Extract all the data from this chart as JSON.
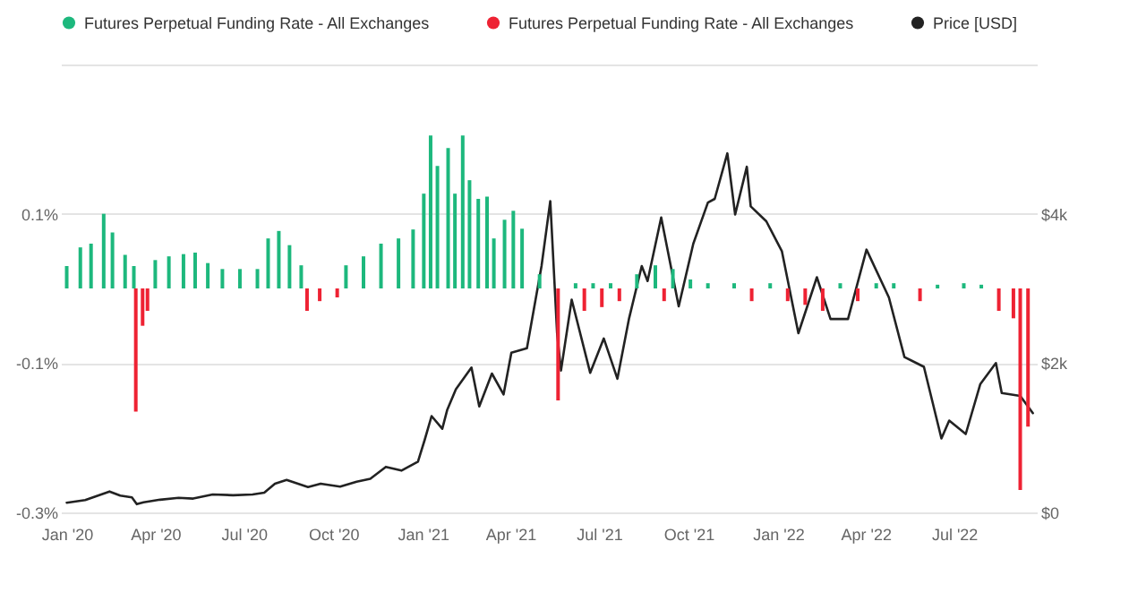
{
  "chart_data": {
    "type": "bar",
    "legend": "top",
    "grid": "y",
    "x": [
      "2020-01-01",
      "2020-01-15",
      "2020-01-26",
      "2020-02-08",
      "2020-02-17",
      "2020-03-01",
      "2020-03-10",
      "2020-03-12",
      "2020-03-19",
      "2020-03-24",
      "2020-04-01",
      "2020-04-15",
      "2020-04-30",
      "2020-05-12",
      "2020-05-25",
      "2020-06-09",
      "2020-06-27",
      "2020-07-15",
      "2020-07-26",
      "2020-08-06",
      "2020-08-17",
      "2020-08-29",
      "2020-09-04",
      "2020-09-17",
      "2020-10-05",
      "2020-10-14",
      "2020-11-01",
      "2020-11-19",
      "2020-12-07",
      "2020-12-22",
      "2021-01-02",
      "2021-01-09",
      "2021-01-16",
      "2021-01-27",
      "2021-02-03",
      "2021-02-11",
      "2021-02-18",
      "2021-02-27",
      "2021-03-08",
      "2021-03-15",
      "2021-03-26",
      "2021-04-04",
      "2021-04-13",
      "2021-05-01",
      "2021-05-20",
      "2021-06-07",
      "2021-06-16",
      "2021-06-25",
      "2021-07-04",
      "2021-07-13",
      "2021-07-22",
      "2021-08-09",
      "2021-08-28",
      "2021-09-06",
      "2021-09-15",
      "2021-10-03",
      "2021-10-21",
      "2021-11-17",
      "2021-12-05",
      "2021-12-24",
      "2022-01-11",
      "2022-01-29",
      "2022-02-16",
      "2022-03-06",
      "2022-03-24",
      "2022-04-12",
      "2022-04-30",
      "2022-05-27",
      "2022-06-14",
      "2022-07-11",
      "2022-07-29",
      "2022-08-16",
      "2022-08-31",
      "2022-09-07",
      "2022-09-15"
    ],
    "series": [
      {
        "name": "Futures Perpetual Funding Rate - All Exchanges",
        "color": "#1db87d",
        "values": [
          0.03,
          0.055,
          0.06,
          0.1,
          0.075,
          0.045,
          0.03,
          null,
          null,
          null,
          0.038,
          0.043,
          0.046,
          0.048,
          0.034,
          0.026,
          0.026,
          0.026,
          0.067,
          0.077,
          0.058,
          0.031,
          null,
          null,
          null,
          0.031,
          0.043,
          0.06,
          0.067,
          0.079,
          0.127,
          0.205,
          0.164,
          0.188,
          0.127,
          0.205,
          0.145,
          0.12,
          0.123,
          0.067,
          0.092,
          0.104,
          0.08,
          0.019,
          null,
          0.007,
          null,
          0.007,
          null,
          0.007,
          null,
          0.019,
          0.031,
          null,
          0.026,
          0.012,
          0.007,
          0.007,
          null,
          0.007,
          null,
          null,
          null,
          0.007,
          null,
          0.007,
          0.007,
          null,
          0.005,
          0.007,
          0.005,
          null,
          null,
          null,
          null
        ]
      },
      {
        "name": "Futures Perpetual Funding Rate - All Exchanges",
        "color": "#ee2233",
        "values": [
          null,
          null,
          null,
          null,
          null,
          null,
          null,
          -0.165,
          -0.05,
          -0.03,
          null,
          null,
          null,
          null,
          null,
          null,
          null,
          null,
          null,
          null,
          null,
          null,
          -0.03,
          -0.017,
          -0.012,
          null,
          null,
          null,
          null,
          null,
          null,
          null,
          null,
          null,
          null,
          null,
          null,
          null,
          null,
          null,
          null,
          null,
          null,
          null,
          -0.15,
          null,
          -0.03,
          null,
          -0.025,
          null,
          -0.017,
          null,
          null,
          -0.017,
          null,
          null,
          null,
          null,
          -0.017,
          null,
          -0.017,
          -0.022,
          -0.03,
          null,
          -0.017,
          null,
          null,
          -0.017,
          null,
          null,
          null,
          -0.03,
          -0.04,
          -0.27,
          -0.185
        ]
      },
      {
        "name": "Price [USD]",
        "type": "line",
        "axis": "y2",
        "color": "#222222",
        "x": [
          "2020-01-01",
          "2020-01-20",
          "2020-02-14",
          "2020-02-25",
          "2020-03-08",
          "2020-03-13",
          "2020-03-20",
          "2020-04-06",
          "2020-04-25",
          "2020-05-10",
          "2020-05-30",
          "2020-06-20",
          "2020-07-10",
          "2020-07-22",
          "2020-08-02",
          "2020-08-14",
          "2020-09-05",
          "2020-09-18",
          "2020-10-08",
          "2020-10-25",
          "2020-11-08",
          "2020-11-24",
          "2020-12-10",
          "2020-12-27",
          "2021-01-03",
          "2021-01-10",
          "2021-01-21",
          "2021-01-26",
          "2021-02-04",
          "2021-02-20",
          "2021-02-28",
          "2021-03-13",
          "2021-03-25",
          "2021-04-02",
          "2021-04-18",
          "2021-05-03",
          "2021-05-12",
          "2021-05-19",
          "2021-05-23",
          "2021-06-03",
          "2021-06-22",
          "2021-07-06",
          "2021-07-20",
          "2021-08-01",
          "2021-08-14",
          "2021-08-20",
          "2021-09-03",
          "2021-09-21",
          "2021-10-06",
          "2021-10-21",
          "2021-10-28",
          "2021-11-10",
          "2021-11-18",
          "2021-11-30",
          "2021-12-04",
          "2021-12-20",
          "2022-01-05",
          "2022-01-22",
          "2022-02-10",
          "2022-02-24",
          "2022-03-14",
          "2022-04-02",
          "2022-04-25",
          "2022-05-11",
          "2022-05-31",
          "2022-06-18",
          "2022-06-26",
          "2022-07-13",
          "2022-07-28",
          "2022-08-13",
          "2022-08-19",
          "2022-09-07",
          "2022-09-20"
        ],
        "values": [
          130,
          165,
          280,
          225,
          200,
          110,
          135,
          170,
          195,
          185,
          240,
          230,
          240,
          265,
          385,
          435,
          340,
          385,
          345,
          410,
          450,
          610,
          560,
          680,
          975,
          1290,
          1120,
          1370,
          1650,
          1940,
          1420,
          1860,
          1580,
          2140,
          2200,
          3300,
          4170,
          2400,
          1900,
          2850,
          1870,
          2330,
          1790,
          2600,
          3300,
          3100,
          3950,
          2760,
          3600,
          4150,
          4200,
          4810,
          3990,
          4630,
          4100,
          3900,
          3500,
          2400,
          3150,
          2590,
          2590,
          3520,
          2880,
          2080,
          1950,
          990,
          1230,
          1050,
          1720,
          2000,
          1600,
          1560,
          1330
        ]
      }
    ],
    "xlim": [
      "2019-12-26",
      "2022-09-24"
    ],
    "xticks": [
      {
        "value": "2020-01-01",
        "label": "Jan '20"
      },
      {
        "value": "2020-04-01",
        "label": "Apr '20"
      },
      {
        "value": "2020-07-01",
        "label": "Jul '20"
      },
      {
        "value": "2020-10-01",
        "label": "Oct '20"
      },
      {
        "value": "2021-01-01",
        "label": "Jan '21"
      },
      {
        "value": "2021-04-01",
        "label": "Apr '21"
      },
      {
        "value": "2021-07-01",
        "label": "Jul '21"
      },
      {
        "value": "2021-10-01",
        "label": "Oct '21"
      },
      {
        "value": "2022-01-01",
        "label": "Jan '22"
      },
      {
        "value": "2022-04-01",
        "label": "Apr '22"
      },
      {
        "value": "2022-07-01",
        "label": "Jul '22"
      }
    ],
    "ylim": [
      -0.3,
      0.3
    ],
    "yticks": [
      {
        "value": -0.3,
        "label": "-0.3%"
      },
      {
        "value": -0.1,
        "label": "-0.1%"
      },
      {
        "value": 0.1,
        "label": "0.1%"
      },
      {
        "value": 0.3,
        "label": null
      }
    ],
    "y2lim": [
      0,
      6000
    ],
    "y2ticks": [
      {
        "value": 0,
        "label": "$0"
      },
      {
        "value": 2000,
        "label": "$2k"
      },
      {
        "value": 4000,
        "label": "$4k"
      },
      {
        "value": 6000,
        "label": null
      }
    ]
  }
}
